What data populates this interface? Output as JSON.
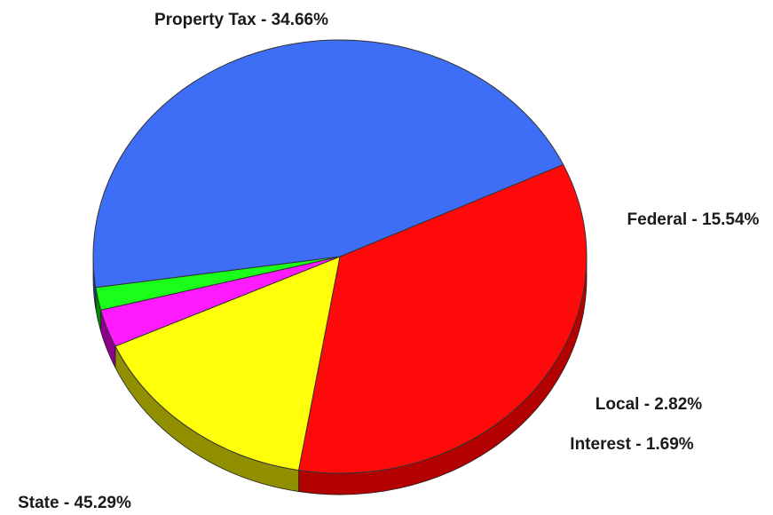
{
  "chart_data": {
    "type": "pie",
    "title": "",
    "slices": [
      {
        "label": "Property Tax - 34.66%",
        "category": "Property Tax",
        "value": 34.66,
        "color": "#ff0a0a",
        "side_color": "#b30000"
      },
      {
        "label": "Federal - 15.54%",
        "category": "Federal",
        "value": 15.54,
        "color": "#ffff0a",
        "side_color": "#8f8f00"
      },
      {
        "label": "Local - 2.82%",
        "category": "Local",
        "value": 2.82,
        "color": "#ff1aff",
        "side_color": "#8a008a"
      },
      {
        "label": "Interest - 1.69%",
        "category": "Interest",
        "value": 1.69,
        "color": "#1aff1a",
        "side_color": "#008c00"
      },
      {
        "label": "State - 45.29%",
        "category": "State",
        "value": 45.29,
        "color": "#3d6ef5",
        "side_color": "#1e3fa0"
      }
    ]
  }
}
